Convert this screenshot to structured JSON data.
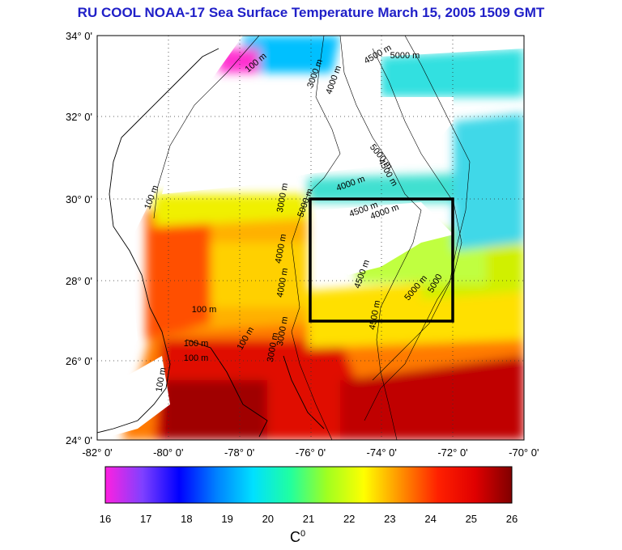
{
  "title": "RU COOL  NOAA-17 Sea Surface Temperature March 15, 2005 1509 GMT",
  "lat_labels": [
    "34° 0'",
    "32° 0'",
    "30° 0'",
    "28° 0'",
    "26° 0'",
    "24° 0'"
  ],
  "lon_labels": [
    "-82° 0'",
    "-80° 0'",
    "-78° 0'",
    "-76° 0'",
    "-74° 0'",
    "-72° 0'",
    "-70° 0'"
  ],
  "colorbar": {
    "ticks": [
      "16",
      "17",
      "18",
      "19",
      "20",
      "21",
      "22",
      "23",
      "24",
      "25",
      "26"
    ],
    "unit": "C",
    "unit_sup": "0",
    "stops": [
      "#ff20e0",
      "#8040ff",
      "#0000ff",
      "#0080ff",
      "#00e0ff",
      "#20ffa0",
      "#a0ff20",
      "#ffff00",
      "#ff9000",
      "#ff2000",
      "#e00000",
      "#800000"
    ]
  },
  "contour_labels": [
    "100 m",
    "3000 m",
    "4000 m",
    "4500 m",
    "5000 m",
    "100 m",
    "3000 m",
    "5000 m",
    "4500 m",
    "4000 m",
    "4500 m",
    "4000 m",
    "4500 m",
    "5000 m",
    "5000",
    "4500 m",
    "3000 m",
    "100 m",
    "100 m",
    "100 m",
    "100 m",
    "3000 m",
    "100 m",
    "4000 m",
    "4000 m",
    "5000 m"
  ],
  "colors": {
    "title": "#2020c8",
    "land": "#ffffff",
    "box": "#000000"
  }
}
